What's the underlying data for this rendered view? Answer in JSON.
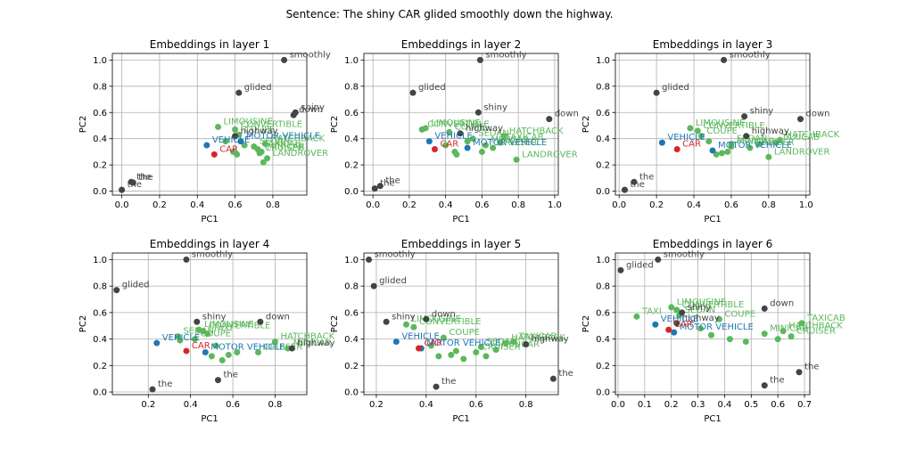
{
  "suptitle": "Sentence: The shiny CAR glided smoothly down the highway.",
  "colors": {
    "word": "#444444",
    "target": "#d62728",
    "vehicle": "#1f77b4",
    "neighbor": "#5cb85c"
  },
  "chart_data": [
    {
      "type": "scatter",
      "title": "Embeddings in layer 1",
      "xlabel": "PC1",
      "ylabel": "PC2",
      "grid": true,
      "xlim": [
        -0.05,
        0.98
      ],
      "ylim": [
        -0.03,
        1.05
      ],
      "xticks": [
        "0.0",
        "0.2",
        "0.4",
        "0.6",
        "0.8"
      ],
      "yticks": [
        "0.0",
        "0.2",
        "0.4",
        "0.6",
        "0.8",
        "1.0"
      ],
      "words": [
        {
          "label": "smoothly",
          "x": 0.86,
          "y": 1.0
        },
        {
          "label": "glided",
          "x": 0.62,
          "y": 0.75
        },
        {
          "label": "shiny",
          "x": 0.92,
          "y": 0.6
        },
        {
          "label": "down",
          "x": 0.91,
          "y": 0.58
        },
        {
          "label": "highway",
          "x": 0.6,
          "y": 0.42
        },
        {
          "label": "the",
          "x": 0.05,
          "y": 0.07
        },
        {
          "label": "the",
          "x": 0.0,
          "y": 0.01
        },
        {
          "label": "the",
          "x": 0.06,
          "y": 0.065
        }
      ],
      "target": {
        "label": "CAR",
        "x": 0.49,
        "y": 0.28
      },
      "vehicle": [
        {
          "label": "VEHICLE",
          "x": 0.45,
          "y": 0.35
        },
        {
          "label": "MOTOR VEHICLE",
          "x": 0.63,
          "y": 0.38
        }
      ],
      "neighbors": [
        {
          "label": "LIMOUSINE",
          "x": 0.51,
          "y": 0.49
        },
        {
          "label": "CONVERTIBLE",
          "x": 0.6,
          "y": 0.47
        },
        {
          "label": "COUPE",
          "x": 0.62,
          "y": 0.43
        },
        {
          "label": "HATCHBACK",
          "x": 0.76,
          "y": 0.36
        },
        {
          "label": "SEDAN",
          "x": 0.7,
          "y": 0.34
        },
        {
          "label": "TAXICAB",
          "x": 0.72,
          "y": 0.32
        },
        {
          "label": "MINICAR",
          "x": 0.74,
          "y": 0.3
        },
        {
          "label": "CRUISER",
          "x": 0.73,
          "y": 0.29
        },
        {
          "label": "LANDROVER",
          "x": 0.77,
          "y": 0.25
        },
        {
          "label": "",
          "x": 0.59,
          "y": 0.3
        },
        {
          "label": "",
          "x": 0.65,
          "y": 0.35
        },
        {
          "label": "",
          "x": 0.55,
          "y": 0.38
        },
        {
          "label": "",
          "x": 0.75,
          "y": 0.22
        },
        {
          "label": "",
          "x": 0.61,
          "y": 0.28
        }
      ]
    },
    {
      "type": "scatter",
      "title": "Embeddings in layer 2",
      "xlabel": "PC1",
      "ylabel": "PC2",
      "grid": true,
      "xlim": [
        -0.05,
        1.02
      ],
      "ylim": [
        -0.03,
        1.05
      ],
      "xticks": [
        "0.0",
        "0.2",
        "0.4",
        "0.6",
        "0.8",
        "1.0"
      ],
      "yticks": [
        "0.0",
        "0.2",
        "0.4",
        "0.6",
        "0.8",
        "1.0"
      ],
      "words": [
        {
          "label": "smoothly",
          "x": 0.59,
          "y": 1.0
        },
        {
          "label": "glided",
          "x": 0.22,
          "y": 0.75
        },
        {
          "label": "shiny",
          "x": 0.58,
          "y": 0.6
        },
        {
          "label": "down",
          "x": 0.97,
          "y": 0.55
        },
        {
          "label": "highway",
          "x": 0.48,
          "y": 0.44
        },
        {
          "label": "the",
          "x": 0.04,
          "y": 0.04
        },
        {
          "label": "the",
          "x": 0.01,
          "y": 0.02
        }
      ],
      "target": {
        "label": "CAR",
        "x": 0.34,
        "y": 0.32
      },
      "vehicle": [
        {
          "label": "VEHICLE",
          "x": 0.31,
          "y": 0.38
        },
        {
          "label": "MOTOR VEHICLE",
          "x": 0.52,
          "y": 0.33
        }
      ],
      "neighbors": [
        {
          "label": "CONVERTIBLE",
          "x": 0.27,
          "y": 0.47
        },
        {
          "label": "LIMOUSINE",
          "x": 0.29,
          "y": 0.48
        },
        {
          "label": "COUPE",
          "x": 0.42,
          "y": 0.45
        },
        {
          "label": "HATCHBACK",
          "x": 0.72,
          "y": 0.42
        },
        {
          "label": "SEDAN",
          "x": 0.55,
          "y": 0.4
        },
        {
          "label": "TAXICAB",
          "x": 0.7,
          "y": 0.37
        },
        {
          "label": "MINICAR",
          "x": 0.62,
          "y": 0.35
        },
        {
          "label": "CRUISER",
          "x": 0.66,
          "y": 0.33
        },
        {
          "label": "LANDROVER",
          "x": 0.79,
          "y": 0.24
        },
        {
          "label": "",
          "x": 0.45,
          "y": 0.3
        },
        {
          "label": "",
          "x": 0.4,
          "y": 0.35
        },
        {
          "label": "",
          "x": 0.6,
          "y": 0.3
        },
        {
          "label": "",
          "x": 0.46,
          "y": 0.28
        },
        {
          "label": "",
          "x": 0.52,
          "y": 0.38
        }
      ]
    },
    {
      "type": "scatter",
      "title": "Embeddings in layer 3",
      "xlabel": "PC1",
      "ylabel": "PC2",
      "grid": true,
      "xlim": [
        -0.02,
        1.02
      ],
      "ylim": [
        -0.03,
        1.05
      ],
      "xticks": [
        "0.0",
        "0.2",
        "0.4",
        "0.6",
        "0.8",
        "1.0"
      ],
      "yticks": [
        "0.0",
        "0.2",
        "0.4",
        "0.6",
        "0.8",
        "1.0"
      ],
      "words": [
        {
          "label": "smoothly",
          "x": 0.56,
          "y": 1.0
        },
        {
          "label": "glided",
          "x": 0.2,
          "y": 0.75
        },
        {
          "label": "shiny",
          "x": 0.67,
          "y": 0.57
        },
        {
          "label": "down",
          "x": 0.97,
          "y": 0.55
        },
        {
          "label": "highway",
          "x": 0.68,
          "y": 0.42
        },
        {
          "label": "the",
          "x": 0.08,
          "y": 0.07
        },
        {
          "label": "the",
          "x": 0.03,
          "y": 0.01
        }
      ],
      "target": {
        "label": "CAR",
        "x": 0.31,
        "y": 0.32
      },
      "vehicle": [
        {
          "label": "VEHICLE",
          "x": 0.23,
          "y": 0.37
        },
        {
          "label": "MOTOR VEHICLE",
          "x": 0.5,
          "y": 0.31
        }
      ],
      "neighbors": [
        {
          "label": "LIMOUSINE",
          "x": 0.38,
          "y": 0.48
        },
        {
          "label": "CONVERTIBLE",
          "x": 0.42,
          "y": 0.46
        },
        {
          "label": "COUPE",
          "x": 0.44,
          "y": 0.42
        },
        {
          "label": "HATCHBACK",
          "x": 0.86,
          "y": 0.39
        },
        {
          "label": "SEDAN",
          "x": 0.6,
          "y": 0.36
        },
        {
          "label": "TAXICAB",
          "x": 0.84,
          "y": 0.37
        },
        {
          "label": "MINICAR",
          "x": 0.6,
          "y": 0.34
        },
        {
          "label": "CRUISER",
          "x": 0.7,
          "y": 0.33
        },
        {
          "label": "LANDROVER",
          "x": 0.8,
          "y": 0.26
        },
        {
          "label": "",
          "x": 0.52,
          "y": 0.28
        },
        {
          "label": "",
          "x": 0.55,
          "y": 0.29
        },
        {
          "label": "",
          "x": 0.48,
          "y": 0.38
        },
        {
          "label": "",
          "x": 0.58,
          "y": 0.3
        },
        {
          "label": "",
          "x": 0.75,
          "y": 0.36
        }
      ]
    },
    {
      "type": "scatter",
      "title": "Embeddings in layer 4",
      "xlabel": "PC1",
      "ylabel": "PC2",
      "grid": true,
      "xlim": [
        0.03,
        0.95
      ],
      "ylim": [
        -0.02,
        1.05
      ],
      "xticks": [
        "0.2",
        "0.4",
        "0.6",
        "0.8"
      ],
      "yticks": [
        "0.0",
        "0.2",
        "0.4",
        "0.6",
        "0.8",
        "1.0"
      ],
      "words": [
        {
          "label": "smoothly",
          "x": 0.38,
          "y": 1.0
        },
        {
          "label": "glided",
          "x": 0.05,
          "y": 0.77
        },
        {
          "label": "shiny",
          "x": 0.43,
          "y": 0.53
        },
        {
          "label": "down",
          "x": 0.73,
          "y": 0.53
        },
        {
          "label": "highway",
          "x": 0.88,
          "y": 0.33
        },
        {
          "label": "the",
          "x": 0.22,
          "y": 0.02
        },
        {
          "label": "the",
          "x": 0.53,
          "y": 0.09
        }
      ],
      "target": {
        "label": "CAR",
        "x": 0.38,
        "y": 0.31
      },
      "vehicle": [
        {
          "label": "VEHICLE",
          "x": 0.24,
          "y": 0.37
        },
        {
          "label": "MOTOR VEHICLE",
          "x": 0.47,
          "y": 0.3
        }
      ],
      "neighbors": [
        {
          "label": "LIMOUSINE",
          "x": 0.44,
          "y": 0.47
        },
        {
          "label": "CONVERTIBLE",
          "x": 0.46,
          "y": 0.46
        },
        {
          "label": "TAXI",
          "x": 0.48,
          "y": 0.44
        },
        {
          "label": "SEDAN",
          "x": 0.34,
          "y": 0.42
        },
        {
          "label": "COUPE",
          "x": 0.42,
          "y": 0.4
        },
        {
          "label": "HATCHBACK",
          "x": 0.8,
          "y": 0.38
        },
        {
          "label": "MINICAR",
          "x": 0.86,
          "y": 0.33
        },
        {
          "label": "CRUISER",
          "x": 0.72,
          "y": 0.3
        },
        {
          "label": "",
          "x": 0.5,
          "y": 0.27
        },
        {
          "label": "",
          "x": 0.55,
          "y": 0.24
        },
        {
          "label": "",
          "x": 0.52,
          "y": 0.35
        },
        {
          "label": "",
          "x": 0.62,
          "y": 0.3
        },
        {
          "label": "",
          "x": 0.35,
          "y": 0.39
        },
        {
          "label": "",
          "x": 0.58,
          "y": 0.28
        }
      ]
    },
    {
      "type": "scatter",
      "title": "Embeddings in layer 5",
      "xlabel": "PC1",
      "ylabel": "PC2",
      "grid": true,
      "xlim": [
        0.15,
        0.93
      ],
      "ylim": [
        -0.02,
        1.05
      ],
      "xticks": [
        "0.2",
        "0.4",
        "0.6",
        "0.8"
      ],
      "yticks": [
        "0.0",
        "0.2",
        "0.4",
        "0.6",
        "0.8",
        "1.0"
      ],
      "words": [
        {
          "label": "smoothly",
          "x": 0.17,
          "y": 1.0
        },
        {
          "label": "glided",
          "x": 0.19,
          "y": 0.8
        },
        {
          "label": "shiny",
          "x": 0.24,
          "y": 0.53
        },
        {
          "label": "down",
          "x": 0.4,
          "y": 0.55
        },
        {
          "label": "highway",
          "x": 0.8,
          "y": 0.36
        },
        {
          "label": "the",
          "x": 0.44,
          "y": 0.04
        },
        {
          "label": "the",
          "x": 0.91,
          "y": 0.1
        }
      ],
      "target": {
        "label": "CAR",
        "x": 0.37,
        "y": 0.33
      },
      "vehicle": [
        {
          "label": "VEHICLE",
          "x": 0.28,
          "y": 0.38
        },
        {
          "label": "MOTOR VEHICLE",
          "x": 0.38,
          "y": 0.33
        }
      ],
      "neighbors": [
        {
          "label": "LIMOUSINE",
          "x": 0.32,
          "y": 0.51
        },
        {
          "label": "CONVERTIBLE",
          "x": 0.35,
          "y": 0.49
        },
        {
          "label": "COUPE",
          "x": 0.47,
          "y": 0.41
        },
        {
          "label": "HATCHBACK",
          "x": 0.72,
          "y": 0.37
        },
        {
          "label": "SEDAN",
          "x": 0.62,
          "y": 0.34
        },
        {
          "label": "TAXICAB",
          "x": 0.75,
          "y": 0.38
        },
        {
          "label": "MINICAR",
          "x": 0.68,
          "y": 0.32
        },
        {
          "label": "CRUISER",
          "x": 0.6,
          "y": 0.3
        },
        {
          "label": "",
          "x": 0.45,
          "y": 0.27
        },
        {
          "label": "",
          "x": 0.5,
          "y": 0.28
        },
        {
          "label": "",
          "x": 0.55,
          "y": 0.25
        },
        {
          "label": "",
          "x": 0.42,
          "y": 0.35
        },
        {
          "label": "",
          "x": 0.52,
          "y": 0.31
        },
        {
          "label": "",
          "x": 0.64,
          "y": 0.27
        }
      ]
    },
    {
      "type": "scatter",
      "title": "Embeddings in layer 6",
      "xlabel": "PC1",
      "ylabel": "PC2",
      "grid": true,
      "xlim": [
        -0.01,
        0.72
      ],
      "ylim": [
        -0.02,
        1.05
      ],
      "xticks": [
        "0.0",
        "0.1",
        "0.2",
        "0.3",
        "0.4",
        "0.5",
        "0.6",
        "0.7"
      ],
      "yticks": [
        "0.0",
        "0.2",
        "0.4",
        "0.6",
        "0.8",
        "1.0"
      ],
      "words": [
        {
          "label": "smoothly",
          "x": 0.15,
          "y": 1.0
        },
        {
          "label": "glided",
          "x": 0.01,
          "y": 0.92
        },
        {
          "label": "shiny",
          "x": 0.24,
          "y": 0.6
        },
        {
          "label": "down",
          "x": 0.55,
          "y": 0.63
        },
        {
          "label": "highway",
          "x": 0.22,
          "y": 0.52
        },
        {
          "label": "the",
          "x": 0.55,
          "y": 0.05
        },
        {
          "label": "the",
          "x": 0.68,
          "y": 0.15
        }
      ],
      "target": {
        "label": "CAR",
        "x": 0.19,
        "y": 0.47
      },
      "vehicle": [
        {
          "label": "VEHICLE",
          "x": 0.14,
          "y": 0.51
        },
        {
          "label": "MOTOR VEHICLE",
          "x": 0.21,
          "y": 0.45
        }
      ],
      "neighbors": [
        {
          "label": "LIMOUSINE",
          "x": 0.2,
          "y": 0.64
        },
        {
          "label": "CONVERTIBLE",
          "x": 0.22,
          "y": 0.62
        },
        {
          "label": "TAXI",
          "x": 0.07,
          "y": 0.57
        },
        {
          "label": "SEDAN",
          "x": 0.23,
          "y": 0.58
        },
        {
          "label": "COUPE",
          "x": 0.38,
          "y": 0.55
        },
        {
          "label": "TAXICAB",
          "x": 0.69,
          "y": 0.52
        },
        {
          "label": "HATCHBACK",
          "x": 0.62,
          "y": 0.46
        },
        {
          "label": "MINICAR",
          "x": 0.55,
          "y": 0.44
        },
        {
          "label": "CRUISER",
          "x": 0.65,
          "y": 0.42
        },
        {
          "label": "",
          "x": 0.42,
          "y": 0.4
        },
        {
          "label": "",
          "x": 0.48,
          "y": 0.38
        },
        {
          "label": "",
          "x": 0.35,
          "y": 0.43
        },
        {
          "label": "",
          "x": 0.31,
          "y": 0.48
        },
        {
          "label": "",
          "x": 0.6,
          "y": 0.4
        }
      ]
    }
  ]
}
